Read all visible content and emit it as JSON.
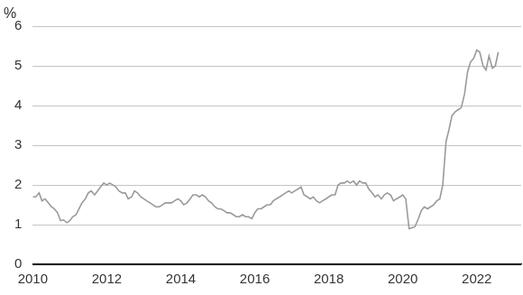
{
  "chart_data": {
    "type": "line",
    "y_label": "%",
    "color": "#9a9a9a",
    "grid": true,
    "xlim": [
      2010,
      2023.2
    ],
    "xticks": [
      2010,
      2012,
      2014,
      2016,
      2018,
      2020,
      2022
    ],
    "ylim": [
      0,
      6
    ],
    "yticks": [
      0,
      1,
      2,
      3,
      4,
      5,
      6
    ],
    "x": [
      2010,
      2010.08,
      2010.17,
      2010.25,
      2010.33,
      2010.42,
      2010.5,
      2010.58,
      2010.67,
      2010.75,
      2010.83,
      2010.92,
      2011,
      2011.08,
      2011.17,
      2011.25,
      2011.33,
      2011.42,
      2011.5,
      2011.58,
      2011.67,
      2011.75,
      2011.83,
      2011.92,
      2012,
      2012.08,
      2012.17,
      2012.25,
      2012.33,
      2012.42,
      2012.5,
      2012.58,
      2012.67,
      2012.75,
      2012.83,
      2012.92,
      2013,
      2013.08,
      2013.17,
      2013.25,
      2013.33,
      2013.42,
      2013.5,
      2013.58,
      2013.67,
      2013.75,
      2013.83,
      2013.92,
      2014,
      2014.08,
      2014.17,
      2014.25,
      2014.33,
      2014.42,
      2014.5,
      2014.58,
      2014.67,
      2014.75,
      2014.83,
      2014.92,
      2015,
      2015.08,
      2015.17,
      2015.25,
      2015.33,
      2015.42,
      2015.5,
      2015.58,
      2015.67,
      2015.75,
      2015.83,
      2015.92,
      2016,
      2016.08,
      2016.17,
      2016.25,
      2016.33,
      2016.42,
      2016.5,
      2016.58,
      2016.67,
      2016.75,
      2016.83,
      2016.92,
      2017,
      2017.08,
      2017.17,
      2017.25,
      2017.33,
      2017.42,
      2017.5,
      2017.58,
      2017.67,
      2017.75,
      2017.83,
      2017.92,
      2018,
      2018.08,
      2018.17,
      2018.25,
      2018.33,
      2018.42,
      2018.5,
      2018.58,
      2018.67,
      2018.75,
      2018.83,
      2018.92,
      2019,
      2019.08,
      2019.17,
      2019.25,
      2019.33,
      2019.42,
      2019.5,
      2019.58,
      2019.67,
      2019.75,
      2019.83,
      2019.92,
      2020,
      2020.08,
      2020.17,
      2020.25,
      2020.33,
      2020.42,
      2020.5,
      2020.58,
      2020.67,
      2020.75,
      2020.83,
      2020.92,
      2021,
      2021.08,
      2021.17,
      2021.25,
      2021.33,
      2021.42,
      2021.5,
      2021.58,
      2021.67,
      2021.75,
      2021.83,
      2021.92,
      2022,
      2022.08,
      2022.17,
      2022.25,
      2022.33,
      2022.42,
      2022.5,
      2022.58
    ],
    "values": [
      1.7,
      1.7,
      1.8,
      1.6,
      1.65,
      1.55,
      1.45,
      1.4,
      1.3,
      1.1,
      1.12,
      1.05,
      1.1,
      1.2,
      1.25,
      1.4,
      1.55,
      1.65,
      1.8,
      1.85,
      1.75,
      1.85,
      1.95,
      2.05,
      2.0,
      2.05,
      2.0,
      1.95,
      1.85,
      1.8,
      1.8,
      1.65,
      1.7,
      1.85,
      1.8,
      1.7,
      1.65,
      1.6,
      1.55,
      1.5,
      1.45,
      1.45,
      1.5,
      1.55,
      1.55,
      1.55,
      1.6,
      1.65,
      1.6,
      1.5,
      1.55,
      1.65,
      1.75,
      1.75,
      1.7,
      1.75,
      1.7,
      1.6,
      1.55,
      1.45,
      1.4,
      1.4,
      1.35,
      1.3,
      1.3,
      1.25,
      1.2,
      1.2,
      1.25,
      1.2,
      1.2,
      1.15,
      1.3,
      1.4,
      1.4,
      1.45,
      1.5,
      1.5,
      1.6,
      1.65,
      1.7,
      1.75,
      1.8,
      1.85,
      1.8,
      1.85,
      1.9,
      1.95,
      1.75,
      1.7,
      1.65,
      1.7,
      1.6,
      1.55,
      1.6,
      1.65,
      1.7,
      1.75,
      1.75,
      2.0,
      2.05,
      2.05,
      2.1,
      2.05,
      2.1,
      2.0,
      2.1,
      2.05,
      2.05,
      1.9,
      1.8,
      1.7,
      1.75,
      1.65,
      1.75,
      1.8,
      1.75,
      1.6,
      1.65,
      1.7,
      1.75,
      1.65,
      0.9,
      0.92,
      0.95,
      1.15,
      1.35,
      1.45,
      1.4,
      1.45,
      1.5,
      1.6,
      1.65,
      2.0,
      3.1,
      3.4,
      3.75,
      3.85,
      3.9,
      3.95,
      4.3,
      4.85,
      5.1,
      5.2,
      5.4,
      5.35,
      5.0,
      4.9,
      5.25,
      4.95,
      5.0,
      5.35
    ]
  }
}
